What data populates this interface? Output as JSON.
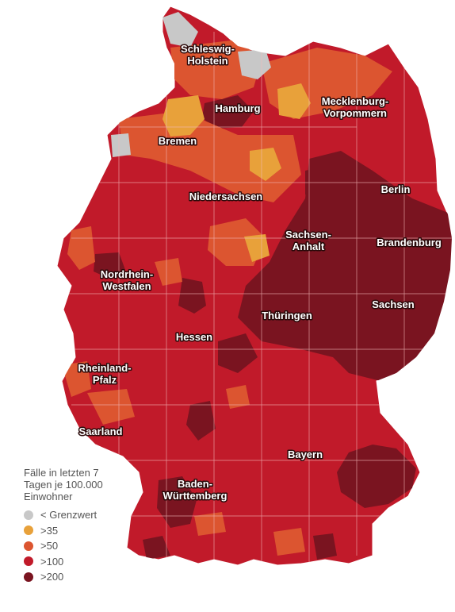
{
  "legend": {
    "title_lines": [
      "Fälle in letzten 7",
      "Tagen je 100.000",
      "Einwohner"
    ],
    "items": [
      {
        "label": "< Grenzwert",
        "color": "#c8c8c8"
      },
      {
        "label": ">35",
        "color": "#e8a13a"
      },
      {
        "label": ">50",
        "color": "#dc5530"
      },
      {
        "label": ">100",
        "color": "#c11a2a"
      },
      {
        "label": ">200",
        "color": "#7a1420"
      }
    ]
  },
  "states": [
    {
      "id": "schleswig-holstein",
      "lines": [
        "Schleswig-",
        "Holstein"
      ],
      "level": ">50"
    },
    {
      "id": "hamburg",
      "lines": [
        "Hamburg"
      ],
      "level": ">200"
    },
    {
      "id": "mecklenburg-vorpommern",
      "lines": [
        "Mecklenburg-",
        "Vorpommern"
      ],
      "level": ">100"
    },
    {
      "id": "bremen",
      "lines": [
        "Bremen"
      ],
      "level": ">50"
    },
    {
      "id": "niedersachsen",
      "lines": [
        "Niedersachsen"
      ],
      "level": ">100"
    },
    {
      "id": "berlin",
      "lines": [
        "Berlin"
      ],
      "level": ">100"
    },
    {
      "id": "sachsen-anhalt",
      "lines": [
        "Sachsen-",
        "Anhalt"
      ],
      "level": ">100"
    },
    {
      "id": "brandenburg",
      "lines": [
        "Brandenburg"
      ],
      "level": ">200"
    },
    {
      "id": "nordrhein-westfalen",
      "lines": [
        "Nordrhein-",
        "Westfalen"
      ],
      "level": ">100"
    },
    {
      "id": "thueringen",
      "lines": [
        "Thüringen"
      ],
      "level": ">200"
    },
    {
      "id": "sachsen",
      "lines": [
        "Sachsen"
      ],
      "level": ">200"
    },
    {
      "id": "hessen",
      "lines": [
        "Hessen"
      ],
      "level": ">100"
    },
    {
      "id": "rheinland-pfalz",
      "lines": [
        "Rheinland-",
        "Pfalz"
      ],
      "level": ">100"
    },
    {
      "id": "saarland",
      "lines": [
        "Saarland"
      ],
      "level": ">100"
    },
    {
      "id": "bayern",
      "lines": [
        "Bayern"
      ],
      "level": ">100"
    },
    {
      "id": "baden-wuerttemberg",
      "lines": [
        "Baden-",
        "Württemberg"
      ],
      "level": ">100"
    }
  ]
}
